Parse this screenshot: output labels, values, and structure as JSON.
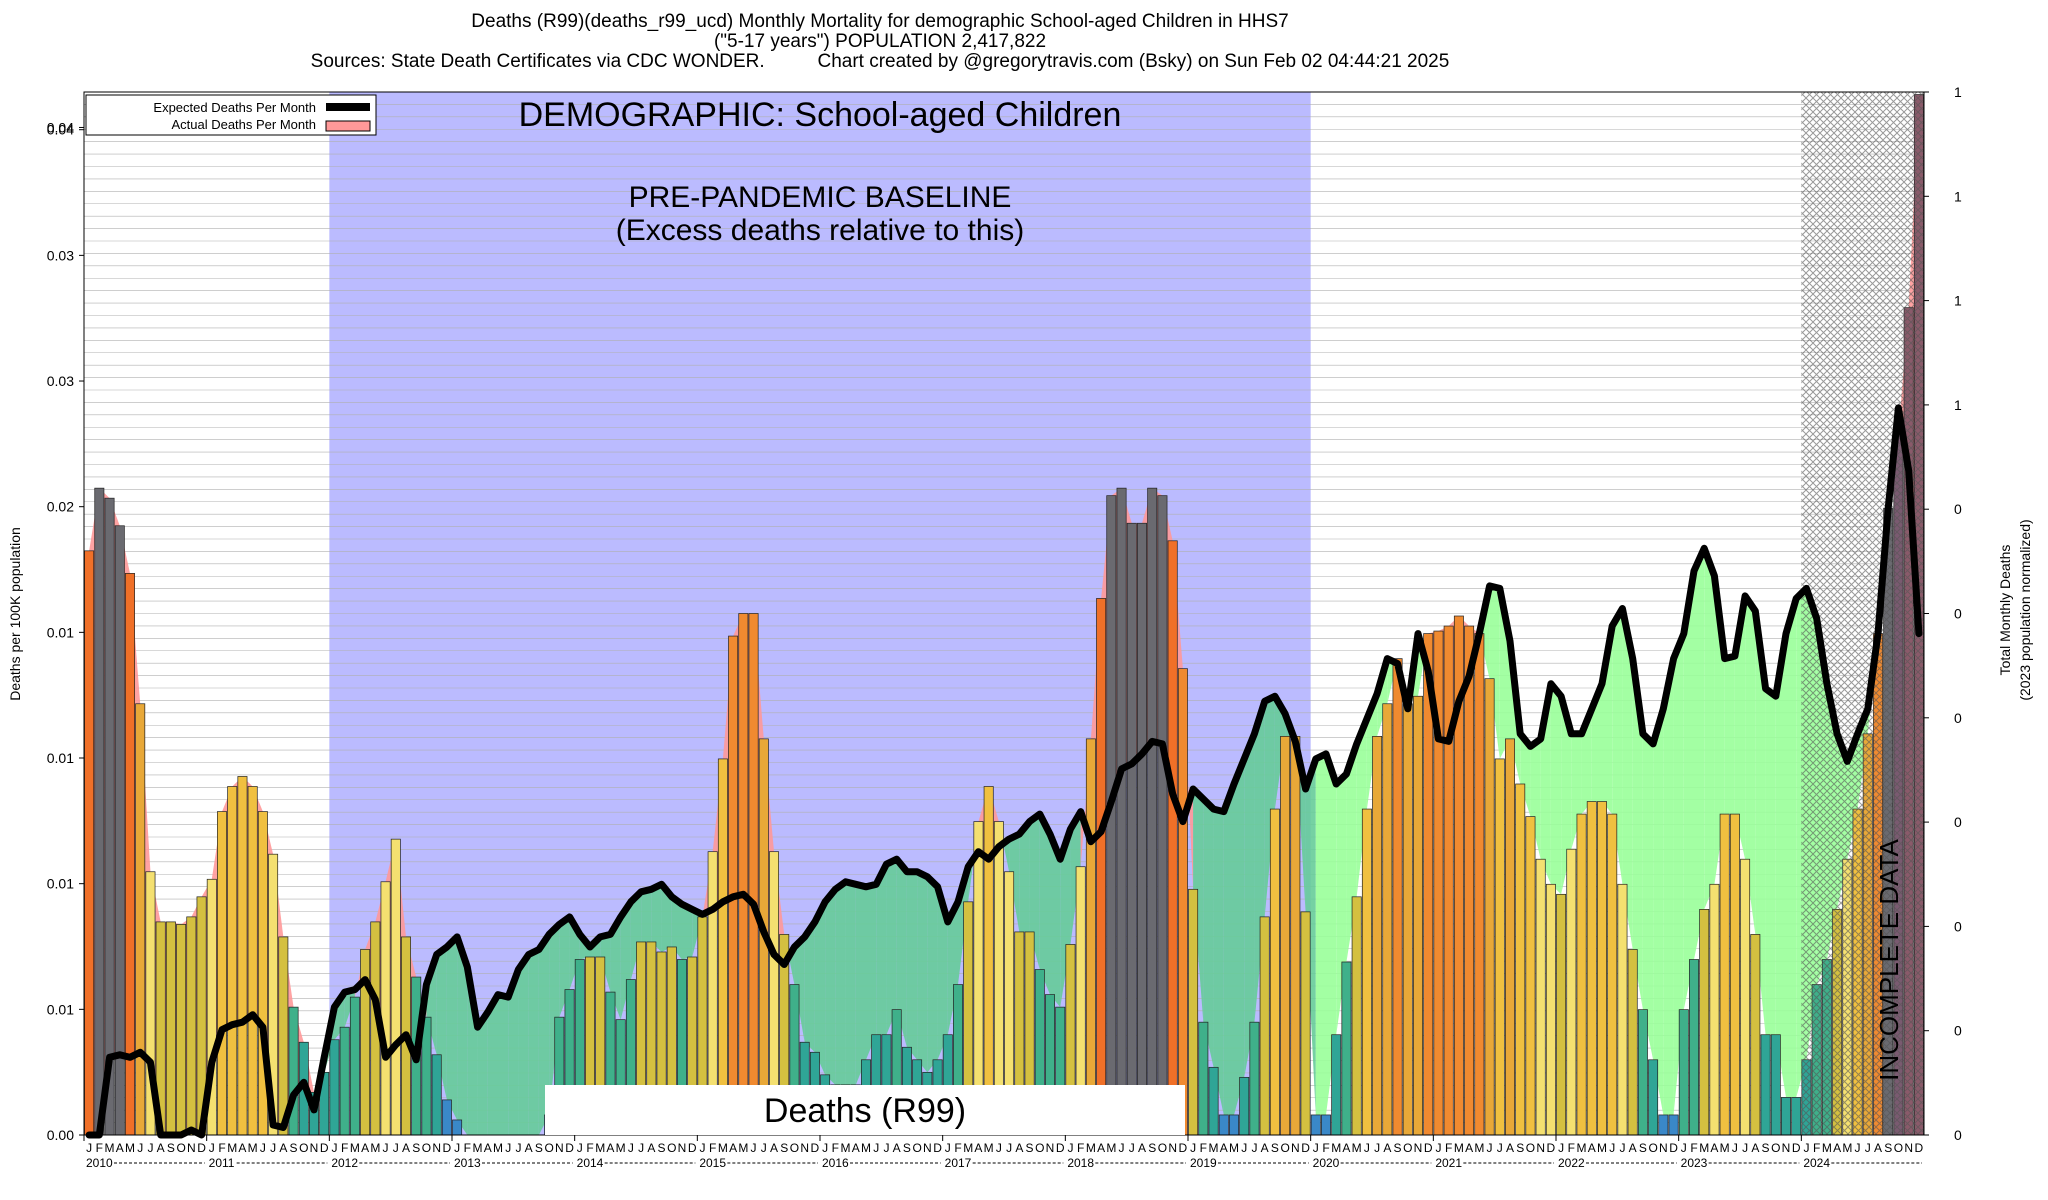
{
  "title": {
    "line1": "Deaths (R99)(deaths_r99_ucd) Monthly Mortality for demographic School-aged Children in HHS7",
    "line2": "(\"5-17 years\") POPULATION 2,417,822",
    "line3_left": "Sources: State Death Certificates via CDC WONDER.",
    "line3_right": "Chart created by @gregorytravis.com (Bsky) on Sun Feb 02 04:44:21 2025"
  },
  "annotations": {
    "demographic": "DEMOGRAPHIC: School-aged Children",
    "baseline_line1": "PRE-PANDEMIC BASELINE",
    "baseline_line2": "(Excess deaths relative to this)",
    "cause_box": "Deaths (R99)",
    "incomplete": "INCOMPLETE DATA"
  },
  "legend": {
    "expected": "Expected Deaths Per Month",
    "actual": "Actual Deaths Per Month"
  },
  "axes": {
    "ylabel_left": "Deaths per 100K population",
    "ylabel_right_line1": "Total Monthly Deaths",
    "ylabel_right_line2": "(2023 population normalized)",
    "left_ticks": [
      "0.00",
      "0.01",
      "0.01",
      "0.01",
      "0.01",
      "0.02",
      "0.03",
      "0.03",
      "0.04",
      "0.04"
    ],
    "right_ticks": [
      "0",
      "0",
      "0",
      "0",
      "0",
      "0",
      "0",
      "1",
      "1",
      "1",
      "1",
      "1"
    ],
    "month_letters": [
      "J",
      "F",
      "M",
      "A",
      "M",
      "J",
      "J",
      "A",
      "S",
      "O",
      "N",
      "D"
    ],
    "years": [
      "2010",
      "2011",
      "2012",
      "2013",
      "2014",
      "2015",
      "2016",
      "2017",
      "2018",
      "2019",
      "2020",
      "2021",
      "2022",
      "2023",
      "2024"
    ]
  },
  "colors": {
    "baseline_region": "#bbbbff",
    "expected_line": "#000000",
    "actual_fill": "#ff9999",
    "excess_fill": "#99ff99",
    "deficit_fill": "#66cc99",
    "incomplete_hatch": "#555555"
  },
  "chart_data": {
    "type": "bar",
    "title": "Deaths (R99)(deaths_r99_ucd) Monthly Mortality for demographic School-aged Children in HHS7",
    "xlabel": "",
    "ylabel": "Deaths per 100K population",
    "ylim": [
      0,
      0.0416
    ],
    "grid": true,
    "legend_position": "top-left",
    "baseline_period": [
      "2012-01",
      "2019-12"
    ],
    "incomplete_period": [
      "2024-01",
      "2024-12"
    ],
    "x": [
      "2010-01",
      "2010-02",
      "2010-03",
      "2010-04",
      "2010-05",
      "2010-06",
      "2010-07",
      "2010-08",
      "2010-09",
      "2010-10",
      "2010-11",
      "2010-12",
      "2011-01",
      "2011-02",
      "2011-03",
      "2011-04",
      "2011-05",
      "2011-06",
      "2011-07",
      "2011-08",
      "2011-09",
      "2011-10",
      "2011-11",
      "2011-12",
      "2012-01",
      "2012-02",
      "2012-03",
      "2012-04",
      "2012-05",
      "2012-06",
      "2012-07",
      "2012-08",
      "2012-09",
      "2012-10",
      "2012-11",
      "2012-12",
      "2013-01",
      "2013-02",
      "2013-03",
      "2013-04",
      "2013-05",
      "2013-06",
      "2013-07",
      "2013-08",
      "2013-09",
      "2013-10",
      "2013-11",
      "2013-12",
      "2014-01",
      "2014-02",
      "2014-03",
      "2014-04",
      "2014-05",
      "2014-06",
      "2014-07",
      "2014-08",
      "2014-09",
      "2014-10",
      "2014-11",
      "2014-12",
      "2015-01",
      "2015-02",
      "2015-03",
      "2015-04",
      "2015-05",
      "2015-06",
      "2015-07",
      "2015-08",
      "2015-09",
      "2015-10",
      "2015-11",
      "2015-12",
      "2016-01",
      "2016-02",
      "2016-03",
      "2016-04",
      "2016-05",
      "2016-06",
      "2016-07",
      "2016-08",
      "2016-09",
      "2016-10",
      "2016-11",
      "2016-12",
      "2017-01",
      "2017-02",
      "2017-03",
      "2017-04",
      "2017-05",
      "2017-06",
      "2017-07",
      "2017-08",
      "2017-09",
      "2017-10",
      "2017-11",
      "2017-12",
      "2018-01",
      "2018-02",
      "2018-03",
      "2018-04",
      "2018-05",
      "2018-06",
      "2018-07",
      "2018-08",
      "2018-09",
      "2018-10",
      "2018-11",
      "2018-12",
      "2019-01",
      "2019-02",
      "2019-03",
      "2019-04",
      "2019-05",
      "2019-06",
      "2019-07",
      "2019-08",
      "2019-09",
      "2019-10",
      "2019-11",
      "2019-12",
      "2020-01",
      "2020-02",
      "2020-03",
      "2020-04",
      "2020-05",
      "2020-06",
      "2020-07",
      "2020-08",
      "2020-09",
      "2020-10",
      "2020-11",
      "2020-12",
      "2021-01",
      "2021-02",
      "2021-03",
      "2021-04",
      "2021-05",
      "2021-06",
      "2021-07",
      "2021-08",
      "2021-09",
      "2021-10",
      "2021-11",
      "2021-12",
      "2022-01",
      "2022-02",
      "2022-03",
      "2022-04",
      "2022-05",
      "2022-06",
      "2022-07",
      "2022-08",
      "2022-09",
      "2022-10",
      "2022-11",
      "2022-12",
      "2023-01",
      "2023-02",
      "2023-03",
      "2023-04",
      "2023-05",
      "2023-06",
      "2023-07",
      "2023-08",
      "2023-09",
      "2023-10",
      "2023-11",
      "2023-12",
      "2024-01",
      "2024-02",
      "2024-03",
      "2024-04",
      "2024-05",
      "2024-06",
      "2024-07",
      "2024-08",
      "2024-09",
      "2024-10",
      "2024-11",
      "2024-12"
    ],
    "series": [
      {
        "name": "Actual Deaths Per Month",
        "values": [
          0.0233,
          0.0258,
          0.0254,
          0.0243,
          0.0224,
          0.0172,
          0.0105,
          0.0085,
          0.0085,
          0.0084,
          0.0087,
          0.0095,
          0.0102,
          0.0129,
          0.0139,
          0.0143,
          0.0139,
          0.0129,
          0.0112,
          0.0079,
          0.0051,
          0.0037,
          0.0017,
          0.0025,
          0.0038,
          0.0043,
          0.0055,
          0.0074,
          0.0085,
          0.0101,
          0.0118,
          0.0079,
          0.0063,
          0.0047,
          0.0032,
          0.0014,
          0.0006,
          0.0,
          0.0,
          0.0,
          0.0,
          0.0,
          0.0,
          0.0,
          0.0,
          0.0008,
          0.0047,
          0.0058,
          0.007,
          0.0071,
          0.0071,
          0.0057,
          0.0046,
          0.0062,
          0.0077,
          0.0077,
          0.0073,
          0.0075,
          0.007,
          0.0071,
          0.0087,
          0.0113,
          0.015,
          0.0199,
          0.0208,
          0.0208,
          0.0158,
          0.0113,
          0.008,
          0.006,
          0.0037,
          0.0033,
          0.0024,
          0.002,
          0.002,
          0.002,
          0.003,
          0.004,
          0.004,
          0.005,
          0.0035,
          0.003,
          0.0025,
          0.003,
          0.004,
          0.006,
          0.0093,
          0.0125,
          0.0139,
          0.0125,
          0.0105,
          0.0081,
          0.0081,
          0.0066,
          0.0056,
          0.0051,
          0.0076,
          0.0107,
          0.0158,
          0.0214,
          0.0255,
          0.0258,
          0.0244,
          0.0244,
          0.0258,
          0.0255,
          0.0237,
          0.0186,
          0.0098,
          0.0045,
          0.0027,
          0.0008,
          0.0008,
          0.0023,
          0.0045,
          0.0087,
          0.013,
          0.0159,
          0.0159,
          0.0089,
          0.0008,
          0.0008,
          0.004,
          0.0069,
          0.0095,
          0.013,
          0.0159,
          0.0172,
          0.019,
          0.0172,
          0.0175,
          0.02,
          0.0201,
          0.0203,
          0.0207,
          0.0203,
          0.02,
          0.0182,
          0.015,
          0.0158,
          0.014,
          0.0127,
          0.011,
          0.01,
          0.0096,
          0.0114,
          0.0128,
          0.0133,
          0.0133,
          0.0128,
          0.01,
          0.0074,
          0.005,
          0.003,
          0.0008,
          0.0008,
          0.005,
          0.007,
          0.009,
          0.01,
          0.0128,
          0.0128,
          0.011,
          0.008,
          0.004,
          0.004,
          0.0015,
          0.0015,
          0.003,
          0.006,
          0.007,
          0.009,
          0.011,
          0.013,
          0.016,
          0.02,
          0.025,
          0.028,
          0.033,
          0.0415
        ]
      },
      {
        "name": "Expected Deaths Per Month",
        "values": [
          0.0,
          0.0,
          0.0031,
          0.0032,
          0.0031,
          0.0033,
          0.0029,
          0.0,
          0.0,
          0.0,
          0.0002,
          0.0,
          0.0029,
          0.0042,
          0.0044,
          0.0045,
          0.0048,
          0.0043,
          0.0004,
          0.0003,
          0.0016,
          0.0021,
          0.001,
          0.0031,
          0.0051,
          0.0057,
          0.0058,
          0.0062,
          0.0054,
          0.0031,
          0.0036,
          0.004,
          0.003,
          0.006,
          0.0072,
          0.0075,
          0.0079,
          0.0067,
          0.0043,
          0.0049,
          0.0056,
          0.0055,
          0.0066,
          0.0072,
          0.0074,
          0.008,
          0.0084,
          0.0087,
          0.008,
          0.0075,
          0.0079,
          0.008,
          0.0087,
          0.0093,
          0.0097,
          0.0098,
          0.01,
          0.0095,
          0.0092,
          0.009,
          0.0088,
          0.009,
          0.0093,
          0.0095,
          0.0096,
          0.0092,
          0.0081,
          0.0072,
          0.0068,
          0.0075,
          0.0079,
          0.0085,
          0.0093,
          0.0098,
          0.0101,
          0.01,
          0.0099,
          0.01,
          0.0108,
          0.011,
          0.0105,
          0.0105,
          0.0103,
          0.0099,
          0.0085,
          0.0093,
          0.0107,
          0.0113,
          0.011,
          0.0115,
          0.0118,
          0.012,
          0.0125,
          0.0128,
          0.012,
          0.011,
          0.0122,
          0.0129,
          0.0117,
          0.0121,
          0.0133,
          0.0146,
          0.0148,
          0.0152,
          0.0157,
          0.0156,
          0.0136,
          0.0125,
          0.0138,
          0.0134,
          0.013,
          0.0129,
          0.014,
          0.015,
          0.016,
          0.0173,
          0.0175,
          0.0168,
          0.0157,
          0.0138,
          0.015,
          0.0152,
          0.014,
          0.0144,
          0.0156,
          0.0166,
          0.0176,
          0.019,
          0.0188,
          0.017,
          0.02,
          0.0185,
          0.0158,
          0.0157,
          0.0173,
          0.0183,
          0.02,
          0.0219,
          0.0218,
          0.0197,
          0.016,
          0.0155,
          0.0158,
          0.018,
          0.0175,
          0.016,
          0.016,
          0.017,
          0.018,
          0.0203,
          0.021,
          0.019,
          0.016,
          0.0156,
          0.017,
          0.019,
          0.02,
          0.0225,
          0.0234,
          0.0223,
          0.019,
          0.0191,
          0.0215,
          0.0209,
          0.0178,
          0.0175,
          0.02,
          0.0214,
          0.0218,
          0.0206,
          0.018,
          0.016,
          0.0149,
          0.016,
          0.017,
          0.02,
          0.025,
          0.029,
          0.0265,
          0.02
        ]
      }
    ]
  }
}
